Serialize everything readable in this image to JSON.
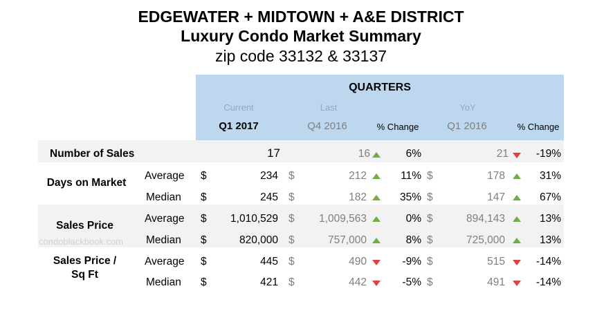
{
  "title": {
    "line1": "EDGEWATER + MIDTOWN + A&E DISTRICT",
    "line2": "Luxury Condo Market Summary",
    "line3": "zip code 33132 & 33137"
  },
  "header": {
    "group": "QUARTERS",
    "sub_current": "Current",
    "sub_last": "Last",
    "sub_yoy": "YoY",
    "col_current": "Q1 2017",
    "col_last": "Q4 2016",
    "col_pct1": "% Change",
    "col_yoy": "Q1 2016",
    "col_pct2": "% Change"
  },
  "rows": {
    "sales": {
      "label": "Number of Sales",
      "current": "17",
      "last": "16",
      "pct1": "6%",
      "yoy": "21",
      "pct2": "-19%"
    },
    "dom": {
      "label": "Days on Market",
      "avg": {
        "label": "Average",
        "cur_sym": "$",
        "current": "234",
        "last_sym": "$",
        "last": "212",
        "pct1": "11%",
        "yoy_sym": "$",
        "yoy": "178",
        "pct2": "31%"
      },
      "med": {
        "label": "Median",
        "cur_sym": "$",
        "current": "245",
        "last_sym": "$",
        "last": "182",
        "pct1": "35%",
        "yoy_sym": "$",
        "yoy": "147",
        "pct2": "67%"
      }
    },
    "price": {
      "label": "Sales Price",
      "avg": {
        "label": "Average",
        "cur_sym": "$",
        "current": "1,010,529",
        "last_sym": "$",
        "last": "1,009,563",
        "pct1": "0%",
        "yoy_sym": "$",
        "yoy": "894,143",
        "pct2": "13%"
      },
      "med": {
        "label": "Median",
        "cur_sym": "$",
        "current": "820,000",
        "last_sym": "$",
        "last": "757,000",
        "pct1": "8%",
        "yoy_sym": "$",
        "yoy": "725,000",
        "pct2": "13%"
      }
    },
    "psf": {
      "label_line1": "Sales Price /",
      "label_line2": "Sq Ft",
      "avg": {
        "label": "Average",
        "cur_sym": "$",
        "current": "445",
        "last_sym": "$",
        "last": "490",
        "pct1": "-9%",
        "yoy_sym": "$",
        "yoy": "515",
        "pct2": "-14%"
      },
      "med": {
        "label": "Median",
        "cur_sym": "$",
        "current": "421",
        "last_sym": "$",
        "last": "442",
        "pct1": "-5%",
        "yoy_sym": "$",
        "yoy": "491",
        "pct2": "-14%"
      }
    }
  },
  "watermark": "condoblackbook.com",
  "colors": {
    "header_band": "#bdd7ee",
    "grey_band": "#f2f2f2",
    "up_arrow": "#70ad47",
    "down_arrow": "#e04040"
  }
}
